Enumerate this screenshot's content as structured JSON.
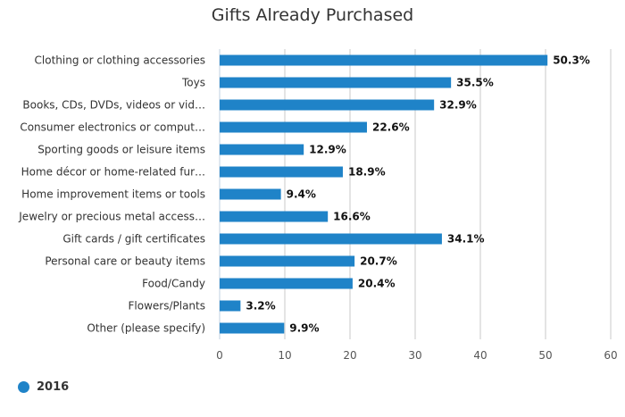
{
  "chart_data": {
    "type": "bar",
    "orientation": "horizontal",
    "title": "Gifts Already Purchased",
    "categories": [
      "Clothing or clothing accessories",
      "Toys",
      "Books, CDs, DVDs, videos or vid…",
      "Consumer electronics or comput…",
      "Sporting goods or leisure items",
      "Home décor or home-related fur…",
      "Home improvement items or tools",
      "Jewelry or precious metal access…",
      "Gift cards / gift certificates",
      "Personal care or beauty items",
      "Food/Candy",
      "Flowers/Plants",
      "Other (please specify)"
    ],
    "series": [
      {
        "name": "2016",
        "values": [
          50.3,
          35.5,
          32.9,
          22.6,
          12.9,
          18.9,
          9.4,
          16.6,
          34.1,
          20.7,
          20.4,
          3.2,
          9.9
        ],
        "data_labels": [
          "50.3%",
          "35.5%",
          "32.9%",
          "22.6%",
          "12.9%",
          "18.9%",
          "9.4%",
          "16.6%",
          "34.1%",
          "20.7%",
          "20.4%",
          "3.2%",
          "9.9%"
        ]
      }
    ],
    "x_ticks": [
      "0",
      "10",
      "20",
      "30",
      "40",
      "50",
      "60"
    ],
    "xlim": [
      0,
      60
    ],
    "grid": true,
    "legend_position": "bottom-left"
  },
  "colors": {
    "bar": "#1f83c8",
    "grid": "#c8c8c8",
    "axis_text": "#555555",
    "label_text": "#333333",
    "data_label_text": "#111111"
  }
}
